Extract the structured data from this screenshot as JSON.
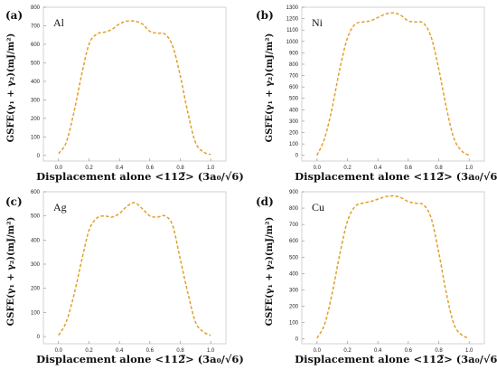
{
  "colors": {
    "curve": "#E0A02A"
  },
  "x_title_prefix": "Displacement alone",
  "x_title_direction": "<112̅>",
  "x_title_unit": "(3a₀/√6)",
  "y_title": "GSFE(γ₁ + γ₂)(mJ/m²)",
  "chart_data": [
    {
      "type": "line",
      "panel": "(a)",
      "element": "Al",
      "xlabel": "Displacement alone <112̅> (3a₀/√6)",
      "ylabel": "GSFE(γ₁ + γ₂)(mJ/m²)",
      "xlim": [
        -0.1,
        1.1
      ],
      "ylim": [
        -30,
        800
      ],
      "xticks": [
        "0.0",
        "0.2",
        "0.4",
        "0.6",
        "0.8",
        "1.0"
      ],
      "yticks": [
        "0",
        "100",
        "200",
        "300",
        "400",
        "500",
        "600",
        "700",
        "800"
      ],
      "x": [
        0.0,
        0.05,
        0.1,
        0.15,
        0.2,
        0.25,
        0.3,
        0.35,
        0.4,
        0.45,
        0.5,
        0.55,
        0.6,
        0.65,
        0.7,
        0.75,
        0.8,
        0.85,
        0.9,
        0.95,
        1.0
      ],
      "y": [
        10,
        70,
        230,
        430,
        600,
        655,
        665,
        680,
        710,
        725,
        725,
        710,
        670,
        660,
        655,
        590,
        430,
        230,
        70,
        20,
        5
      ]
    },
    {
      "type": "line",
      "panel": "(b)",
      "element": "Ni",
      "xlabel": "Displacement alone <112̅> (3a₀/√6)",
      "ylabel": "GSFE(γ₁ + γ₂)(mJ/m²)",
      "xlim": [
        -0.1,
        1.1
      ],
      "ylim": [
        -50,
        1300
      ],
      "xticks": [
        "0.0",
        "0.2",
        "0.4",
        "0.6",
        "0.8",
        "1.0"
      ],
      "yticks": [
        "0",
        "100",
        "200",
        "300",
        "400",
        "500",
        "600",
        "700",
        "800",
        "900",
        "1000",
        "1100",
        "1200",
        "1300"
      ],
      "x": [
        0.0,
        0.05,
        0.1,
        0.15,
        0.2,
        0.25,
        0.3,
        0.35,
        0.4,
        0.45,
        0.5,
        0.55,
        0.6,
        0.65,
        0.7,
        0.75,
        0.8,
        0.85,
        0.9,
        0.95,
        1.0
      ],
      "y": [
        0,
        150,
        420,
        760,
        1030,
        1150,
        1170,
        1180,
        1210,
        1240,
        1250,
        1230,
        1180,
        1170,
        1160,
        1040,
        760,
        420,
        150,
        40,
        0
      ]
    },
    {
      "type": "line",
      "panel": "(c)",
      "element": "Ag",
      "xlabel": "Displacement alone <112̅> (3a₀/√6)",
      "ylabel": "GSFE(γ₁ + γ₂)(mJ/m²)",
      "xlim": [
        -0.1,
        1.1
      ],
      "ylim": [
        -30,
        600
      ],
      "xticks": [
        "0.0",
        "0.2",
        "0.4",
        "0.6",
        "0.8",
        "1.0"
      ],
      "yticks": [
        "0",
        "100",
        "200",
        "300",
        "400",
        "500",
        "600"
      ],
      "x": [
        0.0,
        0.05,
        0.1,
        0.15,
        0.2,
        0.25,
        0.3,
        0.35,
        0.4,
        0.45,
        0.5,
        0.55,
        0.6,
        0.65,
        0.7,
        0.75,
        0.8,
        0.85,
        0.9,
        0.95,
        1.0
      ],
      "y": [
        5,
        60,
        170,
        310,
        440,
        490,
        500,
        495,
        510,
        540,
        555,
        530,
        500,
        495,
        500,
        460,
        320,
        180,
        60,
        20,
        5
      ]
    },
    {
      "type": "line",
      "panel": "(d)",
      "element": "Cu",
      "xlabel": "Displacement alone <112̅> (3a₀/√6)",
      "ylabel": "GSFE(γ₁ + γ₂)(mJ/m²)",
      "xlim": [
        -0.1,
        1.1
      ],
      "ylim": [
        -30,
        900
      ],
      "xticks": [
        "0.0",
        "0.2",
        "0.4",
        "0.6",
        "0.8",
        "1.0"
      ],
      "yticks": [
        "0",
        "100",
        "200",
        "300",
        "400",
        "500",
        "600",
        "700",
        "800",
        "900"
      ],
      "x": [
        0.0,
        0.05,
        0.1,
        0.15,
        0.2,
        0.25,
        0.3,
        0.35,
        0.4,
        0.45,
        0.5,
        0.55,
        0.6,
        0.65,
        0.7,
        0.75,
        0.8,
        0.85,
        0.9,
        0.95,
        1.0
      ],
      "y": [
        5,
        90,
        280,
        520,
        720,
        810,
        830,
        840,
        855,
        870,
        875,
        865,
        840,
        830,
        820,
        740,
        530,
        280,
        90,
        25,
        5
      ]
    }
  ]
}
